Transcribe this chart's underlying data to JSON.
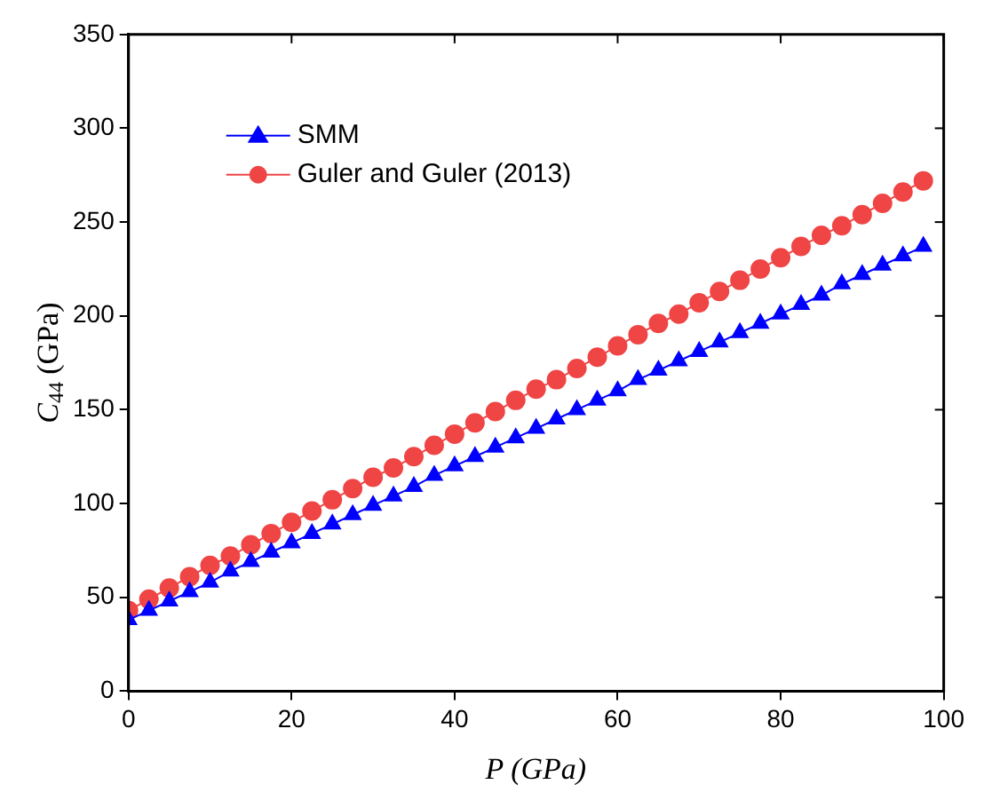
{
  "chart_data": {
    "type": "line",
    "xlabel": "P (GPa)",
    "ylabel": "C$_{44}$ (GPa)",
    "x": [
      0,
      2.5,
      5,
      7.5,
      10,
      12.5,
      15,
      17.5,
      20,
      22.5,
      25,
      27.5,
      30,
      32.5,
      35,
      37.5,
      40,
      42.5,
      45,
      47.5,
      50,
      52.5,
      55,
      57.5,
      60,
      62.5,
      65,
      67.5,
      70,
      72.5,
      75,
      77.5,
      80,
      82.5,
      85,
      87.5,
      90,
      92.5,
      95,
      97.5
    ],
    "series": [
      {
        "name": "SMM",
        "color": "#0000ff",
        "marker": "triangle",
        "values": [
          38,
          43,
          48,
          53,
          58,
          64,
          69,
          74,
          79,
          84,
          89,
          94,
          99,
          104,
          109,
          115,
          120,
          125,
          130,
          135,
          140,
          145,
          150,
          155,
          160,
          166,
          171,
          176,
          181,
          186,
          191,
          196,
          201,
          206,
          211,
          217,
          222,
          227,
          232,
          237
        ]
      },
      {
        "name": "Guler and Guler (2013)",
        "color": "#f04545",
        "marker": "circle",
        "values": [
          43,
          49,
          55,
          61,
          67,
          72,
          78,
          84,
          90,
          96,
          102,
          108,
          114,
          119,
          125,
          131,
          137,
          143,
          149,
          155,
          161,
          166,
          172,
          178,
          184,
          190,
          196,
          201,
          207,
          213,
          219,
          225,
          231,
          237,
          243,
          248,
          254,
          260,
          266,
          272
        ]
      }
    ],
    "xlim": [
      0,
      100
    ],
    "xticks": [
      0,
      20,
      40,
      60,
      80,
      100
    ],
    "ylim": [
      0,
      350
    ],
    "yticks": [
      0,
      50,
      100,
      150,
      200,
      250,
      300,
      350
    ],
    "grid": false,
    "legend": "top left",
    "line_style": "solid"
  }
}
